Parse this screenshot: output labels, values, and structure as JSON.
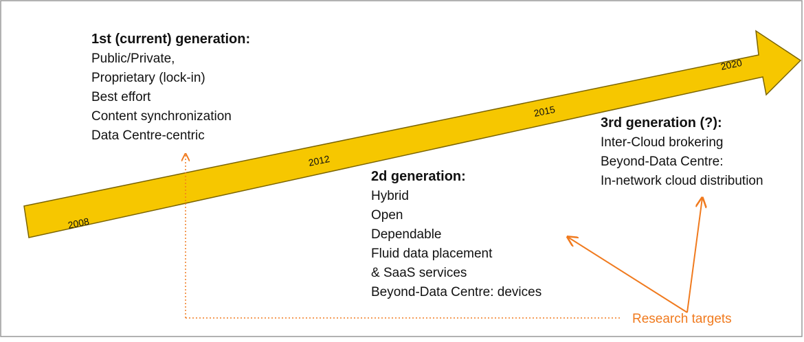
{
  "timeline": {
    "years": [
      "2008",
      "2012",
      "2015",
      "2020"
    ]
  },
  "generations": [
    {
      "title": "1st (current) generation:",
      "items": [
        "Public/Private,",
        "Proprietary (lock-in)",
        "Best effort",
        "Content synchronization",
        "Data Centre-centric"
      ]
    },
    {
      "title": "2d generation:",
      "items": [
        "Hybrid",
        "Open",
        "Dependable",
        "Fluid data placement",
        "& SaaS services",
        "Beyond-Data Centre: devices"
      ]
    },
    {
      "title": "3rd generation (?):",
      "items": [
        "Inter-Cloud brokering",
        "Beyond-Data Centre:",
        "In-network cloud distribution"
      ]
    }
  ],
  "annotation": {
    "label": "Research targets"
  }
}
